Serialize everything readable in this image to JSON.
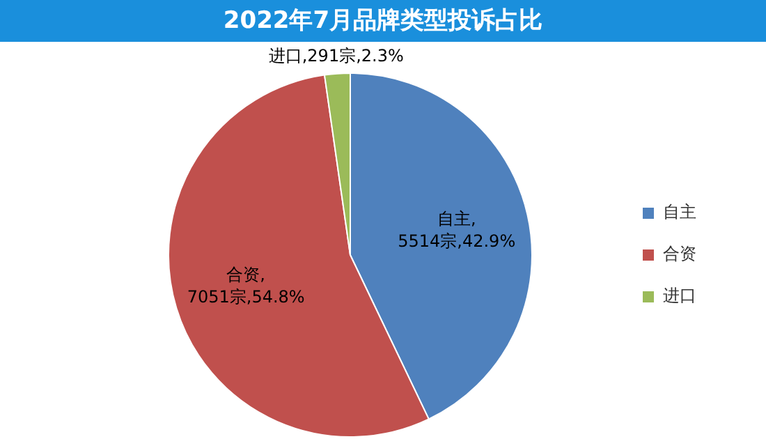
{
  "chart_data": {
    "type": "pie",
    "title": "2022年7月品牌类型投诉占比",
    "categories": [
      "自主",
      "合资",
      "进口"
    ],
    "values": [
      5514,
      7051,
      291
    ],
    "colors": [
      "#4f81bd",
      "#c0504d",
      "#9bbb59"
    ],
    "value_labels": [
      "自主,\n5514宗,42.9%",
      "合资,\n7051宗,54.8%",
      "进口,291宗,2.3%"
    ],
    "legend": "right"
  }
}
